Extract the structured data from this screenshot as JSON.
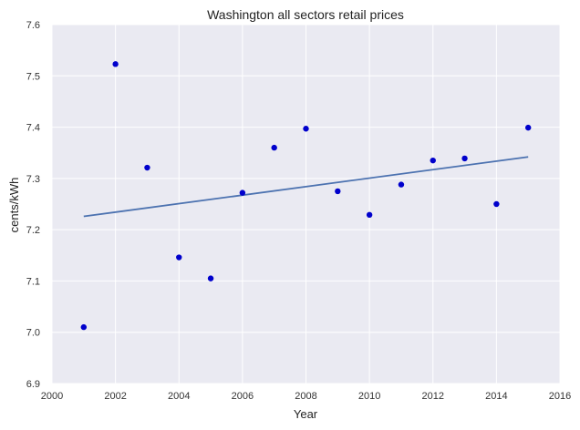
{
  "chart_data": {
    "type": "scatter",
    "title": "Washington   all sectors retail prices",
    "xlabel": "Year",
    "ylabel": "cents/kWh",
    "xlim": [
      2000,
      2016
    ],
    "ylim": [
      6.9,
      7.6
    ],
    "xticks": [
      2000,
      2002,
      2004,
      2006,
      2008,
      2010,
      2012,
      2014,
      2016
    ],
    "yticks": [
      6.9,
      7.0,
      7.1,
      7.2,
      7.3,
      7.4,
      7.5,
      7.6
    ],
    "grid": true,
    "colors": {
      "background": "#eaeaf2",
      "grid": "#ffffff",
      "points": "#0000cc",
      "trend": "#4c72b0"
    },
    "series": [
      {
        "kind": "points",
        "x": [
          2001,
          2002,
          2003,
          2004,
          2005,
          2006,
          2007,
          2008,
          2009,
          2010,
          2011,
          2012,
          2013,
          2014,
          2015
        ],
        "y": [
          7.01,
          7.523,
          7.321,
          7.146,
          7.105,
          7.272,
          7.36,
          7.397,
          7.275,
          7.229,
          7.288,
          7.335,
          7.339,
          7.25,
          7.399
        ]
      },
      {
        "kind": "trend-line",
        "x": [
          2001,
          2015
        ],
        "y": [
          7.226,
          7.342
        ]
      }
    ]
  }
}
